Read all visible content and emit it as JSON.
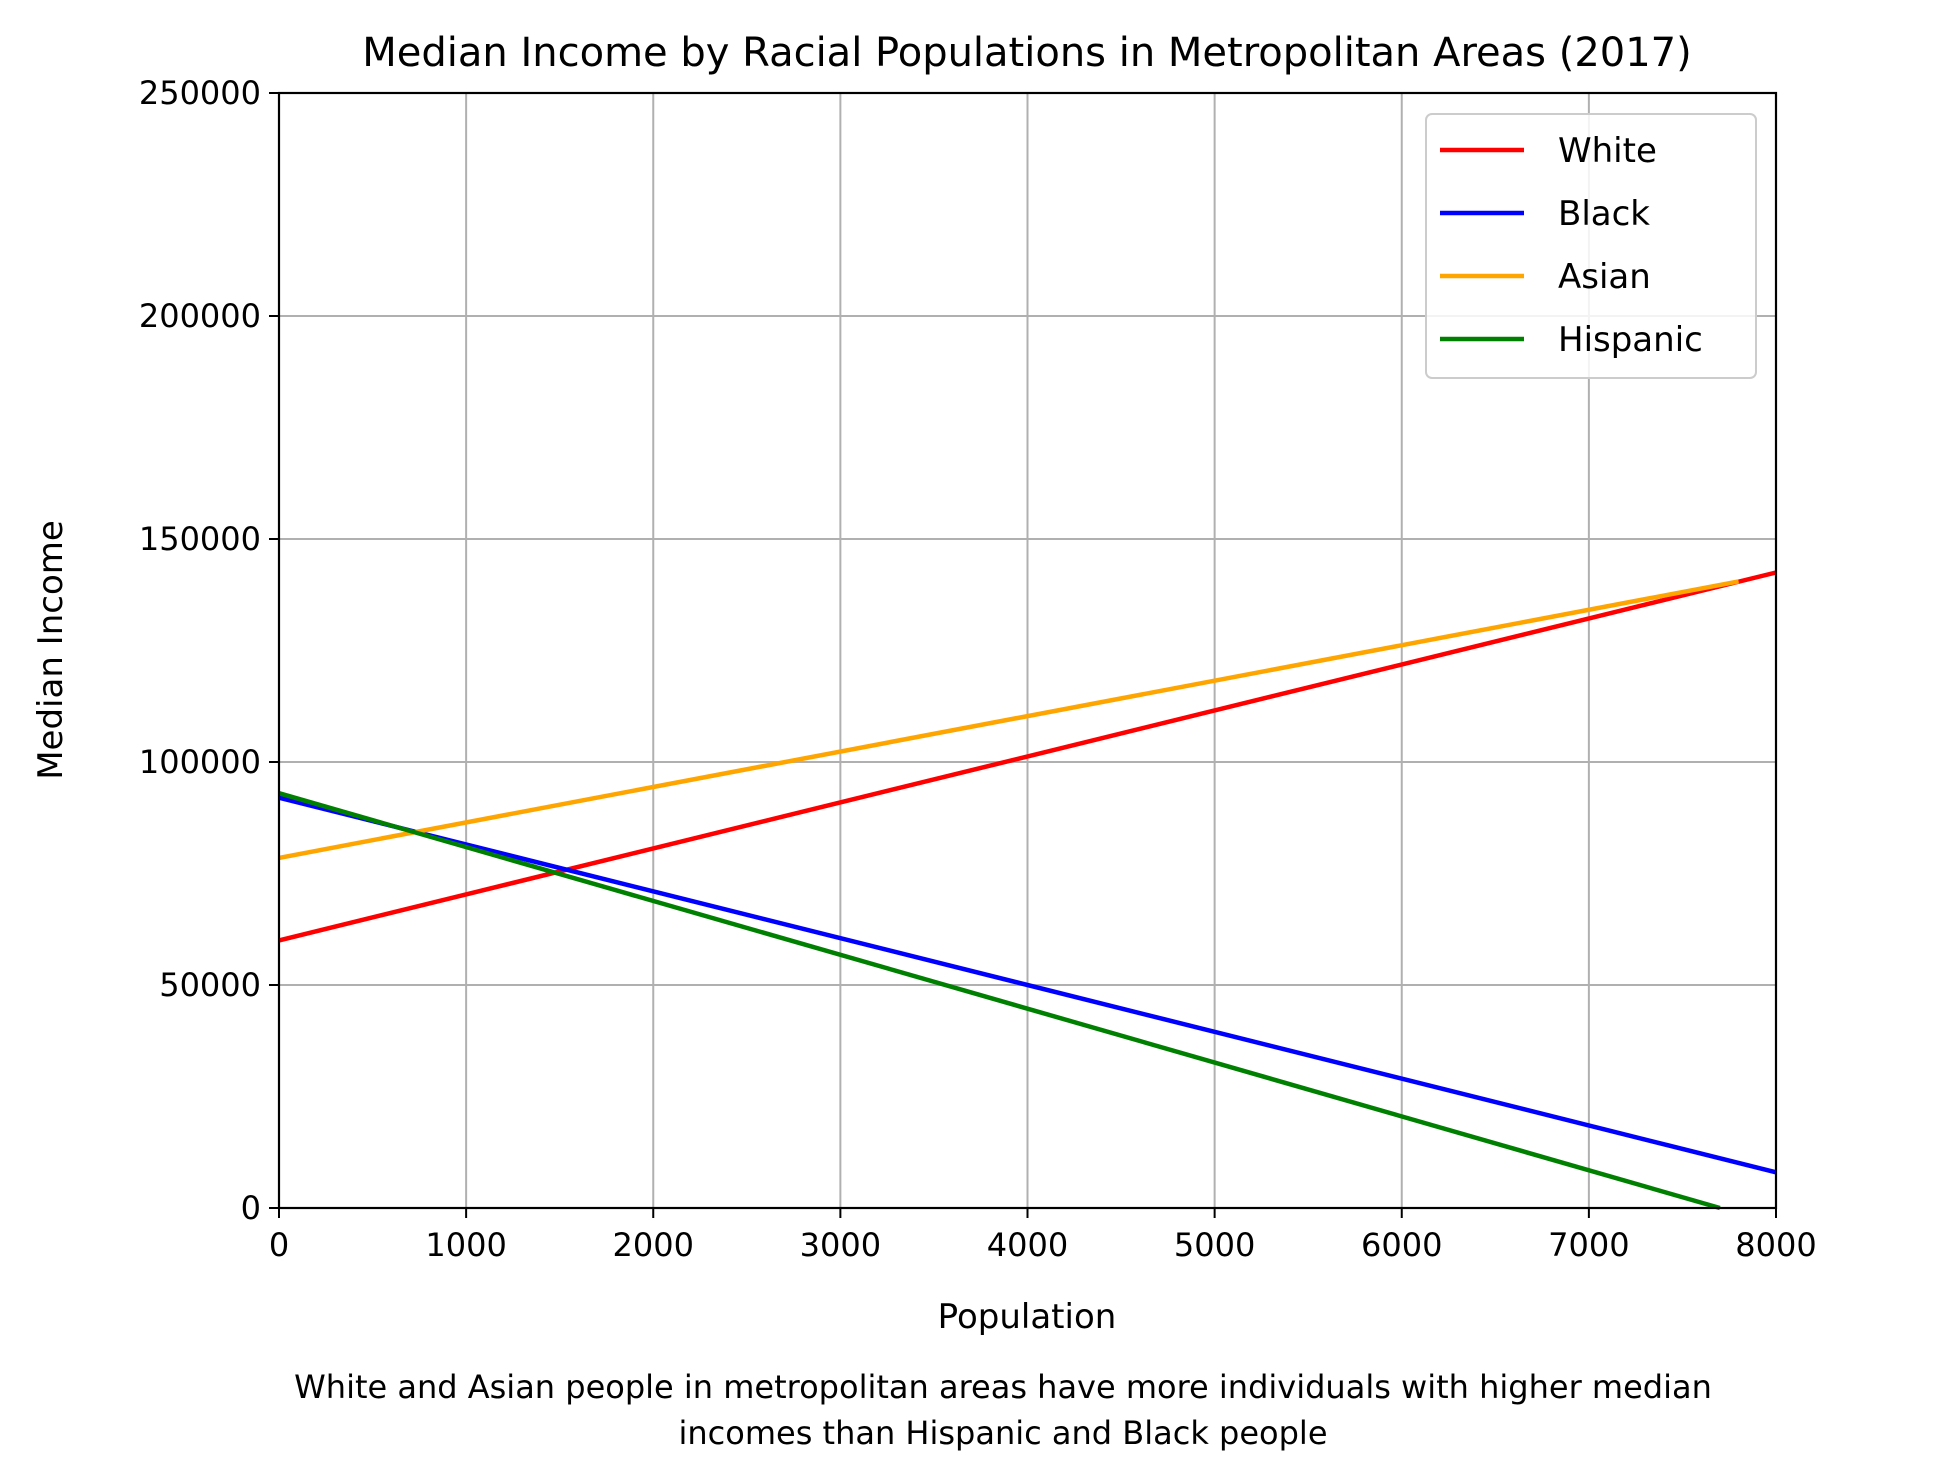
{
  "chart_data": {
    "type": "line",
    "title": "Median Income by Racial Populations in Metropolitan Areas (2017)",
    "xlabel": "Population",
    "ylabel": "Median Income",
    "xlim": [
      0,
      8000
    ],
    "ylim": [
      0,
      250000
    ],
    "x_ticks": [
      0,
      1000,
      2000,
      3000,
      4000,
      5000,
      6000,
      7000,
      8000
    ],
    "y_ticks": [
      0,
      50000,
      100000,
      150000,
      200000,
      250000
    ],
    "x_tick_labels": [
      "0",
      "1000",
      "2000",
      "3000",
      "4000",
      "5000",
      "6000",
      "7000",
      "8000"
    ],
    "y_tick_labels": [
      "0",
      "50000",
      "100000",
      "150000",
      "200000",
      "250000"
    ],
    "grid": true,
    "legend_position": "top-right",
    "caption": [
      "White and Asian people in metropolitan areas have more individuals with higher median",
      "incomes than Hispanic and Black people"
    ],
    "series": [
      {
        "name": "White",
        "color": "#ff0000",
        "x": [
          0,
          8000
        ],
        "y": [
          60000,
          142500
        ]
      },
      {
        "name": "Black",
        "color": "#0000ff",
        "x": [
          0,
          8000
        ],
        "y": [
          92000,
          8000
        ]
      },
      {
        "name": "Asian",
        "color": "#ffa500",
        "x": [
          0,
          7800
        ],
        "y": [
          78500,
          140500
        ]
      },
      {
        "name": "Hispanic",
        "color": "#008000",
        "x": [
          0,
          7700
        ],
        "y": [
          93000,
          0
        ]
      }
    ]
  }
}
